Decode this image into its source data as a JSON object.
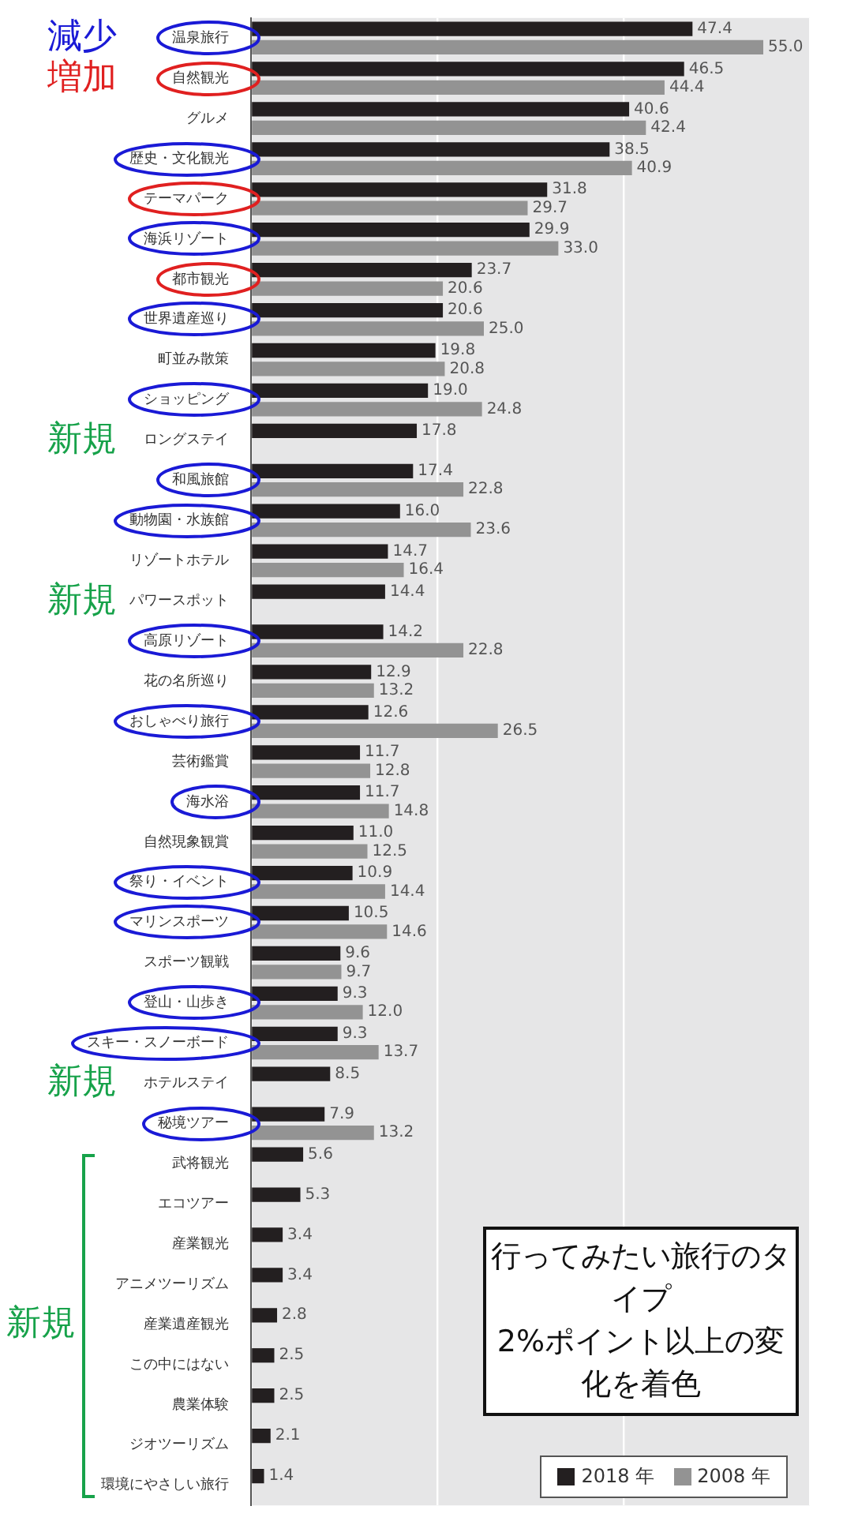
{
  "chart_data": {
    "type": "bar",
    "orientation": "horizontal",
    "title": "行ってみたい旅行のタイプ",
    "subtitle": "2%ポイント以上の変化を着色",
    "categories": [
      "温泉旅行",
      "自然観光",
      "グルメ",
      "歴史・文化観光",
      "テーマパーク",
      "海浜リゾート",
      "都市観光",
      "世界遺産巡り",
      "町並み散策",
      "ショッピング",
      "ロングステイ",
      "和風旅館",
      "動物園・水族館",
      "リゾートホテル",
      "パワースポット",
      "高原リゾート",
      "花の名所巡り",
      "おしゃべり旅行",
      "芸術鑑賞",
      "海水浴",
      "自然現象観賞",
      "祭り・イベント",
      "マリンスポーツ",
      "スポーツ観戦",
      "登山・山歩き",
      "スキー・スノーボード",
      "ホテルステイ",
      "秘境ツアー",
      "武将観光",
      "エコツアー",
      "産業観光",
      "アニメツーリズム",
      "産業遺産観光",
      "この中にはない",
      "農業体験",
      "ジオツーリズム",
      "環境にやさしい旅行"
    ],
    "series": [
      {
        "name": "2018 年",
        "color": "#231f20",
        "values": [
          47.4,
          46.5,
          40.6,
          38.5,
          31.8,
          29.9,
          23.7,
          20.6,
          19.8,
          19.0,
          17.8,
          17.4,
          16.0,
          14.7,
          14.4,
          14.2,
          12.9,
          12.6,
          11.7,
          11.7,
          11.0,
          10.9,
          10.5,
          9.6,
          9.3,
          9.3,
          8.5,
          7.9,
          5.6,
          5.3,
          3.4,
          3.4,
          2.8,
          2.5,
          2.5,
          2.1,
          1.4
        ],
        "value_labels": [
          "47.4",
          "46.5",
          "40.6",
          "38.5",
          "31.8",
          "29.9",
          "23.7",
          "20.6",
          "19.8",
          "19.0",
          "17.8",
          "17.4",
          "16.0",
          "14.7",
          "14.4",
          "14.2",
          "12.9",
          "12.6",
          "11.7",
          "11.7",
          "11.0",
          "10.9",
          "10.5",
          "9.6",
          "9.3",
          "9.3",
          "8.5",
          "7.9",
          "5.6",
          "5.3",
          "3.4",
          "3.4",
          "2.8",
          "2.5",
          "2.5",
          "2.1",
          "1.4"
        ]
      },
      {
        "name": "2008 年",
        "color": "#939393",
        "values": [
          55.0,
          44.4,
          42.4,
          40.9,
          29.7,
          33.0,
          20.6,
          25.0,
          20.8,
          24.8,
          null,
          22.8,
          23.6,
          16.4,
          null,
          22.8,
          13.2,
          26.5,
          12.8,
          14.8,
          12.5,
          14.4,
          14.6,
          9.7,
          12.0,
          13.7,
          null,
          13.2,
          null,
          null,
          null,
          null,
          null,
          null,
          null,
          null,
          null
        ],
        "value_labels": [
          "55.0",
          "44.4",
          "42.4",
          "40.9",
          "29.7",
          "33.0",
          "20.6",
          "25.0",
          "20.8",
          "24.8",
          null,
          "22.8",
          "23.6",
          "16.4",
          null,
          "22.8",
          "13.2",
          "26.5",
          "12.8",
          "14.8",
          "12.5",
          "14.4",
          "14.6",
          "9.7",
          "12.0",
          "13.7",
          null,
          "13.2",
          null,
          null,
          null,
          null,
          null,
          null,
          null,
          null,
          null
        ]
      }
    ],
    "xlim": [
      0,
      60
    ],
    "xticks": [
      {
        "value": 0,
        "label": null
      },
      {
        "value": 20,
        "label": null
      },
      {
        "value": 40,
        "label": null
      },
      {
        "value": 60,
        "label": null
      }
    ],
    "grid": "x",
    "tick_labels": "y",
    "legend": "bottom right",
    "annotations": [
      "減少",
      "増加",
      "新規",
      "新規",
      "新規",
      "新規"
    ]
  }
}
